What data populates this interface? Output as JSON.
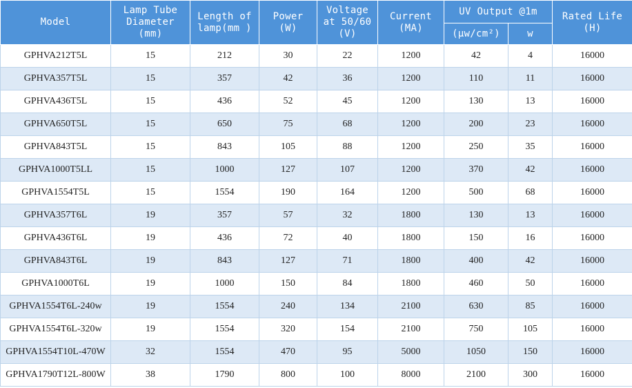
{
  "headers": {
    "model": "Model",
    "diameter": [
      "Lamp Tube",
      "Diameter",
      "(mm)"
    ],
    "length": [
      "Length of",
      "lamp(mm )"
    ],
    "power": [
      "Power",
      "(W)"
    ],
    "voltage": [
      "Voltage",
      "at 50/60",
      "(V)"
    ],
    "current": [
      "Current",
      "(MA)"
    ],
    "uv_output": "UV Output @1m",
    "uv_intensity": "(μw/cm²)",
    "uv_watts": "w",
    "rated_life": [
      "Rated Life",
      "(H)"
    ]
  },
  "rows": [
    [
      "GPHVA212T5L",
      "15",
      "212",
      "30",
      "22",
      "1200",
      "42",
      "4",
      "16000"
    ],
    [
      "GPHVA357T5L",
      "15",
      "357",
      "42",
      "36",
      "1200",
      "110",
      "11",
      "16000"
    ],
    [
      "GPHVA436T5L",
      "15",
      "436",
      "52",
      "45",
      "1200",
      "130",
      "13",
      "16000"
    ],
    [
      "GPHVA650T5L",
      "15",
      "650",
      "75",
      "68",
      "1200",
      "200",
      "23",
      "16000"
    ],
    [
      "GPHVA843T5L",
      "15",
      "843",
      "105",
      "88",
      "1200",
      "250",
      "35",
      "16000"
    ],
    [
      "GPHVA1000T5LL",
      "15",
      "1000",
      "127",
      "107",
      "1200",
      "370",
      "42",
      "16000"
    ],
    [
      "GPHVA1554T5L",
      "15",
      "1554",
      "190",
      "164",
      "1200",
      "500",
      "68",
      "16000"
    ],
    [
      "GPHVA357T6L",
      "19",
      "357",
      "57",
      "32",
      "1800",
      "130",
      "13",
      "16000"
    ],
    [
      "GPHVA436T6L",
      "19",
      "436",
      "72",
      "40",
      "1800",
      "150",
      "16",
      "16000"
    ],
    [
      "GPHVA843T6L",
      "19",
      "843",
      "127",
      "71",
      "1800",
      "400",
      "42",
      "16000"
    ],
    [
      "GPHVA1000T6L",
      "19",
      "1000",
      "150",
      "84",
      "1800",
      "460",
      "50",
      "16000"
    ],
    [
      "GPHVA1554T6L-240w",
      "19",
      "1554",
      "240",
      "134",
      "2100",
      "630",
      "85",
      "16000"
    ],
    [
      "GPHVA1554T6L-320w",
      "19",
      "1554",
      "320",
      "154",
      "2100",
      "750",
      "105",
      "16000"
    ],
    [
      "GPHVA1554T10L-470W",
      "32",
      "1554",
      "470",
      "95",
      "5000",
      "1050",
      "150",
      "16000"
    ],
    [
      "GPHVA1790T12L-800W",
      "38",
      "1790",
      "800",
      "100",
      "8000",
      "2100",
      "300",
      "16000"
    ]
  ]
}
